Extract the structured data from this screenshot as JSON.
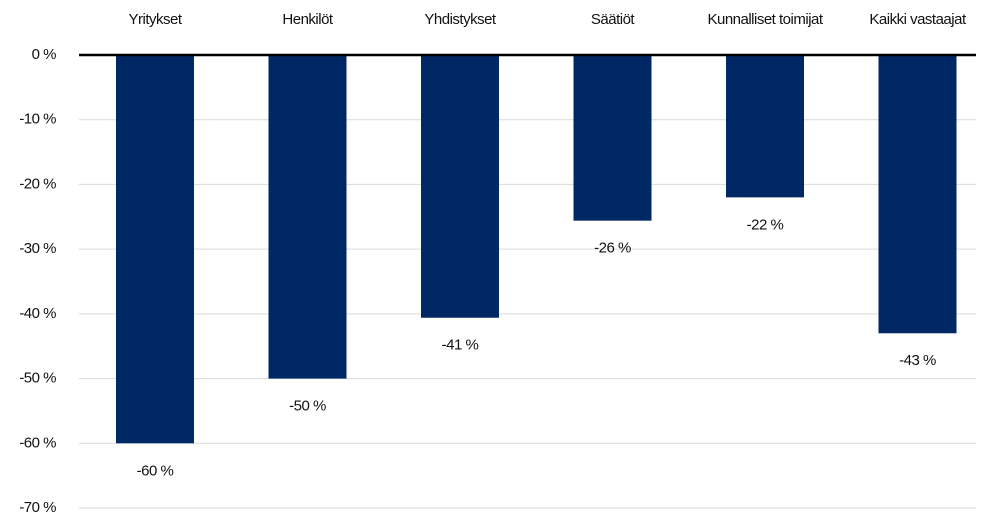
{
  "chart_data": {
    "type": "bar",
    "categories": [
      "Yritykset",
      "Henkilöt",
      "Yhdistykset",
      "Säätiöt",
      "Kunnalliset toimijat",
      "Kaikki vastaajat"
    ],
    "values": [
      -60,
      -50,
      -40.6,
      -25.6,
      -22,
      -43
    ],
    "value_labels": [
      "-60 %",
      "-50 %",
      "-41 %",
      "-26 %",
      "-22 %",
      "-43 %"
    ],
    "color": "#002864",
    "ylim": [
      -70,
      0
    ],
    "yticks": [
      {
        "value": 0,
        "label": "0 %"
      },
      {
        "value": -10,
        "label": "-10 %"
      },
      {
        "value": -20,
        "label": "-20 %"
      },
      {
        "value": -30,
        "label": "-30 %"
      },
      {
        "value": -40,
        "label": "-40 %"
      },
      {
        "value": -50,
        "label": "-50 %"
      },
      {
        "value": -60,
        "label": "-60 %"
      },
      {
        "value": -70,
        "label": "-70 %"
      }
    ],
    "grid": true
  }
}
